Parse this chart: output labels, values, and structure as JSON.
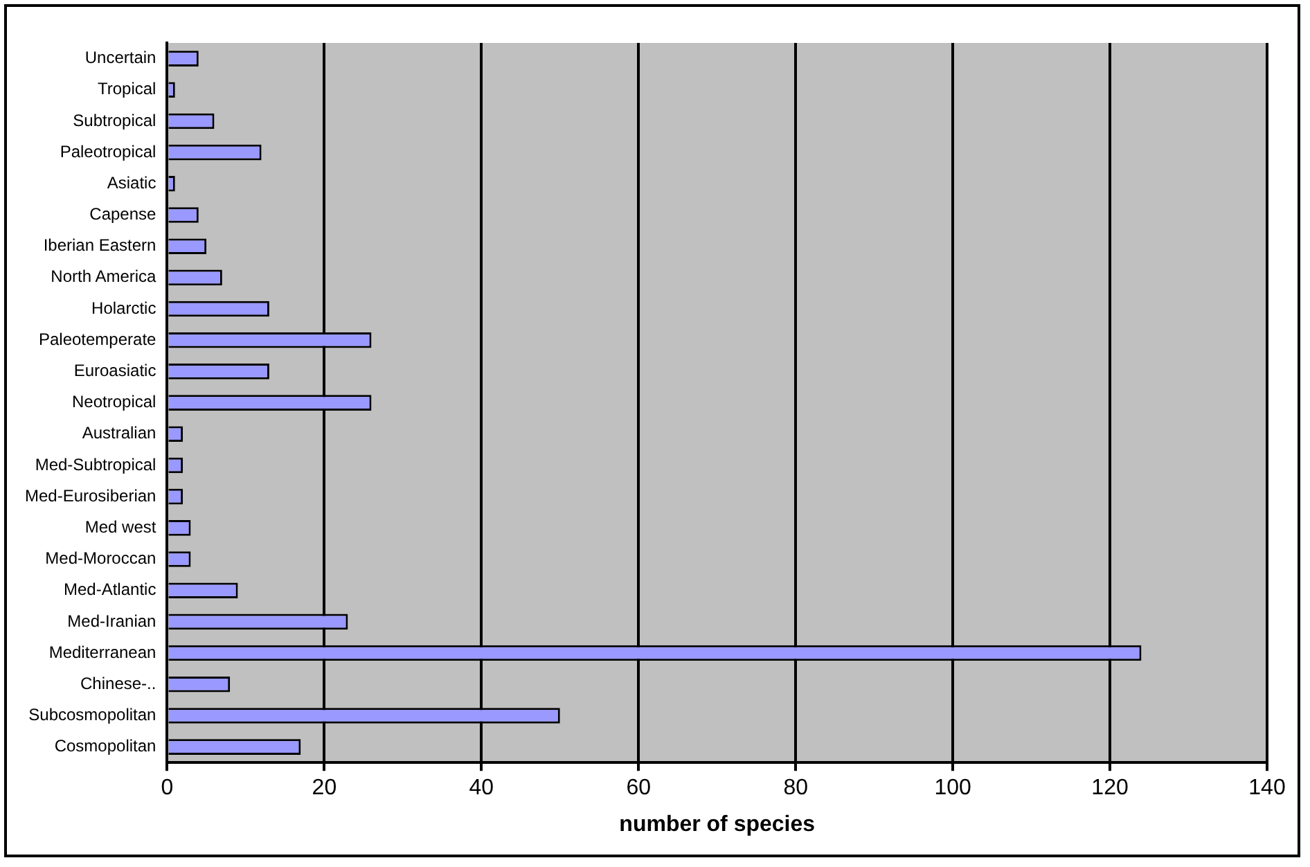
{
  "chart_data": {
    "type": "bar",
    "orientation": "horizontal",
    "xlabel": "number of species",
    "categories": [
      "Uncertain",
      "Tropical",
      "Subtropical",
      "Paleotropical",
      "Asiatic",
      "Capense",
      "Iberian Eastern",
      "North America",
      "Holarctic",
      "Paleotemperate",
      "Euroasiatic",
      "Neotropical",
      "Australian",
      "Med-Subtropical",
      "Med-Eurosiberian",
      "Med west",
      "Med-Moroccan",
      "Med-Atlantic",
      "Med-Iranian",
      "Mediterranean",
      "Chinese-..",
      "Subcosmopolitan",
      "Cosmopolitan"
    ],
    "values": [
      4,
      1,
      6,
      12,
      1,
      4,
      5,
      7,
      13,
      26,
      13,
      26,
      2,
      2,
      2,
      3,
      3,
      9,
      23,
      124,
      8,
      50,
      17
    ],
    "color": "#9999ff",
    "xlim": [
      0,
      140
    ],
    "xticks": [
      0,
      20,
      40,
      60,
      80,
      100,
      120,
      140
    ],
    "grid": "x",
    "legend": false
  }
}
